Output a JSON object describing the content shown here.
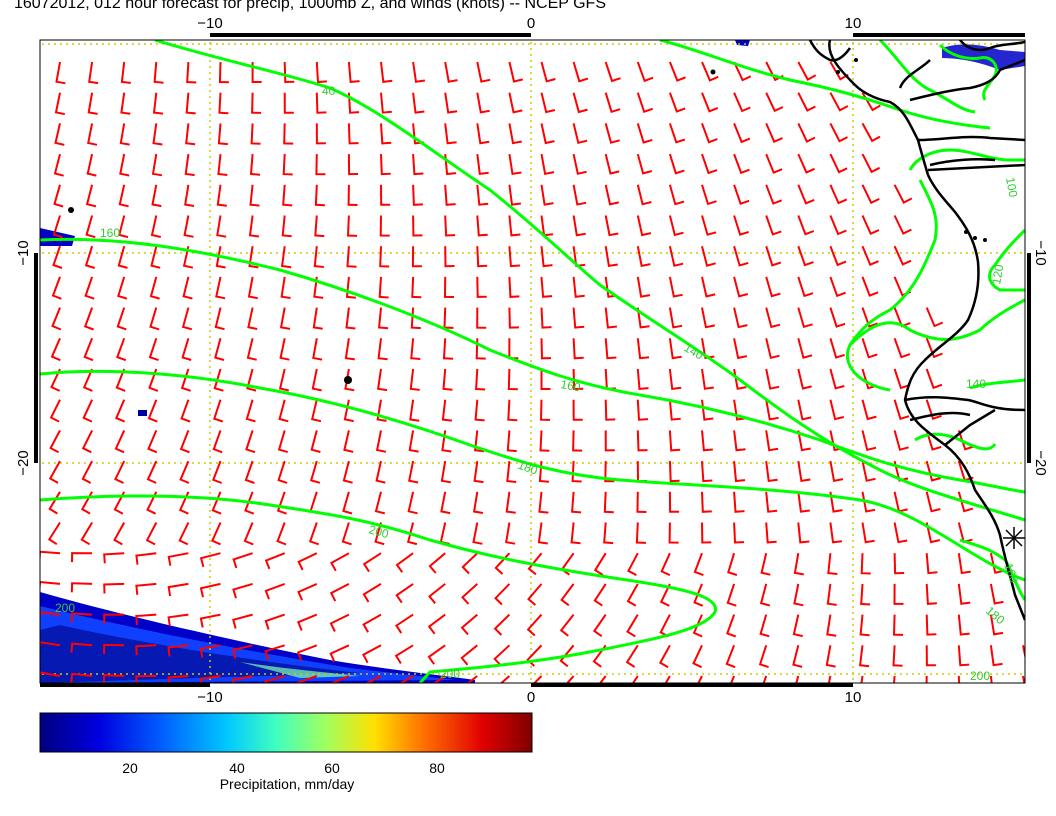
{
  "title": "16072012, 012 hour forecast for precip, 1000mb Z, and winds (knots) -- NCEP GFS",
  "axes": {
    "lon_ticks_top": [
      "−10",
      "0",
      "10"
    ],
    "lon_ticks_bottom": [
      "−10",
      "0",
      "10"
    ],
    "lat_ticks_left": [
      "−10",
      "−20"
    ],
    "lat_ticks_right": [
      "−10",
      "−20"
    ]
  },
  "contour_labels": [
    "40",
    "160",
    "140",
    "160",
    "180",
    "200",
    "200",
    "200",
    "100",
    "120",
    "140",
    "180",
    "200",
    "160"
  ],
  "colorbar": {
    "label": "Precipitation, mm/day",
    "ticks": [
      "20",
      "40",
      "60",
      "80"
    ],
    "colors": [
      "#00007f",
      "#0000e0",
      "#0060ff",
      "#00c8ff",
      "#40ffc0",
      "#a0ff60",
      "#ffe000",
      "#ff7000",
      "#e00000",
      "#7f0000"
    ]
  },
  "colors": {
    "contour": "#00ff00",
    "wind_barb": "#ff0000",
    "grid": "#cccc00",
    "coast": "#000000"
  }
}
